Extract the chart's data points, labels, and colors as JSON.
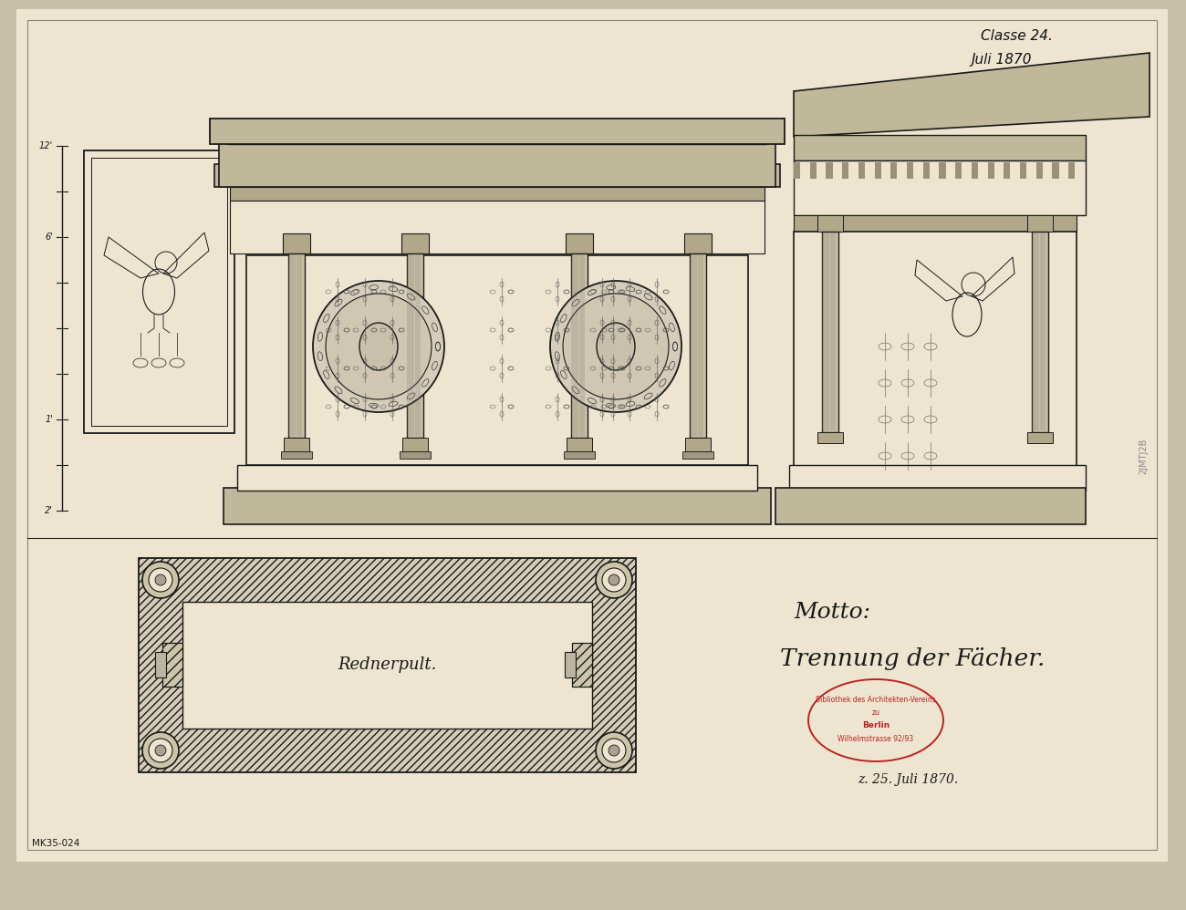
{
  "bg_color": "#c8bfa8",
  "paper_color": "#e8e0cc",
  "inner_paper": "#ede5d0",
  "ink_color": "#1a1a1a",
  "light_ink": "#444444",
  "mid_tone": "#c0b89a",
  "dark_tone": "#a09880",
  "figsize": [
    13.0,
    9.98
  ],
  "dpi": 100,
  "top_right_text1": "Classe 24.",
  "top_right_text2": "Juli 1870",
  "bottom_left_text": "MK35-024",
  "motto_line1": "Motto:",
  "motto_line2": "Trennung der Fächer.",
  "rednerpult_text": "Rednerpult.",
  "date_text": "z. 25. Juli 1870.",
  "alamy_text": "2JMTJ2B"
}
